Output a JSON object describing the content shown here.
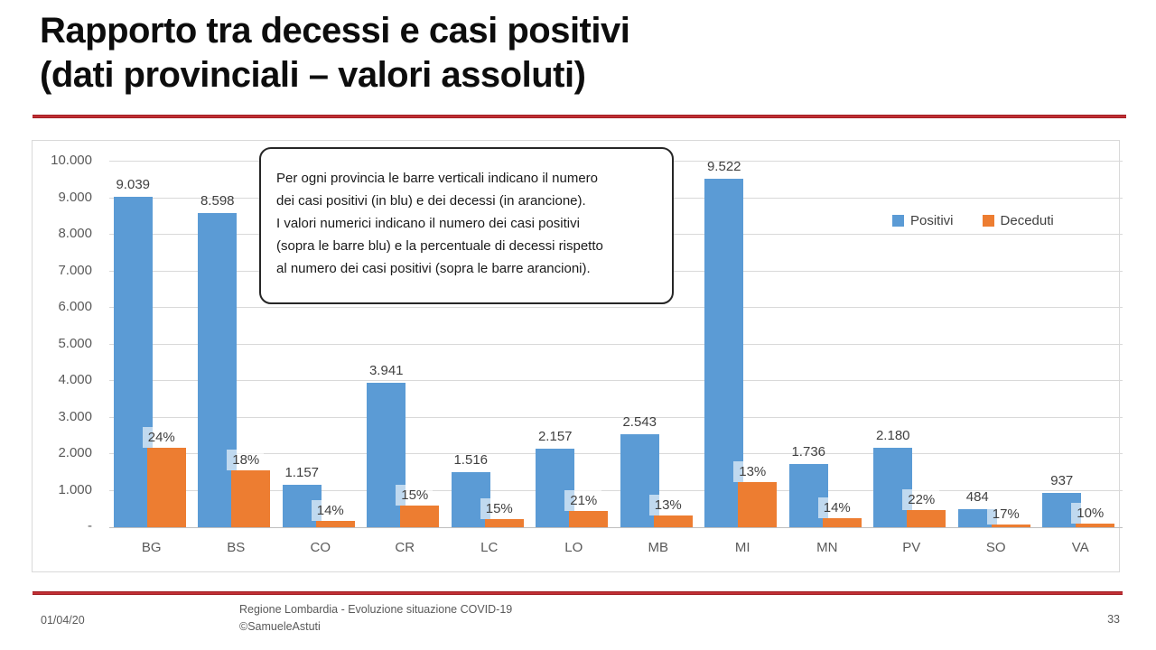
{
  "slide": {
    "title_line1": "Rapporto tra decessi e casi positivi",
    "title_line2": "(dati provinciali – valori assoluti)"
  },
  "annotation": {
    "text": "Per ogni provincia le barre verticali indicano il numero\ndei casi positivi (in blu) e dei decessi (in arancione).\nI valori numerici indicano il numero dei casi positivi\n(sopra le barre blu) e la percentuale di decessi rispetto\nal numero dei casi positivi (sopra le barre arancioni)."
  },
  "legend": {
    "positivi_label": "Positivi",
    "deceduti_label": "Deceduti"
  },
  "footer": {
    "date": "01/04/20",
    "credit_line1": "Regione Lombardia - Evoluzione situazione COVID-19",
    "credit_line2": "©SamueleAstuti",
    "page_number": "33"
  },
  "chart_data": {
    "type": "bar",
    "title": "",
    "xlabel": "",
    "ylabel": "",
    "categories": [
      "BG",
      "BS",
      "CO",
      "CR",
      "LC",
      "LO",
      "MB",
      "MI",
      "MN",
      "PV",
      "SO",
      "VA"
    ],
    "series": [
      {
        "name": "Positivi",
        "color": "#5B9BD5",
        "values": [
          9039,
          8598,
          1157,
          3941,
          1516,
          2157,
          2543,
          9522,
          1736,
          2180,
          484,
          937
        ],
        "data_labels": [
          "9.039",
          "8.598",
          "1.157",
          "3.941",
          "1.516",
          "2.157",
          "2.543",
          "9.522",
          "1.736",
          "2.180",
          "484",
          "937"
        ]
      },
      {
        "name": "Deceduti",
        "color": "#ED7D31",
        "values": [
          2169,
          1548,
          162,
          591,
          227,
          453,
          331,
          1238,
          243,
          480,
          82,
          94
        ],
        "data_labels": [
          "24%",
          "18%",
          "14%",
          "15%",
          "15%",
          "21%",
          "13%",
          "13%",
          "14%",
          "22%",
          "17%",
          "10%"
        ]
      }
    ],
    "ylim": [
      0,
      10000
    ],
    "y_tick_values": [
      0,
      1000,
      2000,
      3000,
      4000,
      5000,
      6000,
      7000,
      8000,
      9000,
      10000
    ],
    "y_tick_labels": [
      "-",
      "1.000",
      "2.000",
      "3.000",
      "4.000",
      "5.000",
      "6.000",
      "7.000",
      "8.000",
      "9.000",
      "10.000"
    ],
    "grid": true,
    "legend_position": "inside-top-right"
  }
}
